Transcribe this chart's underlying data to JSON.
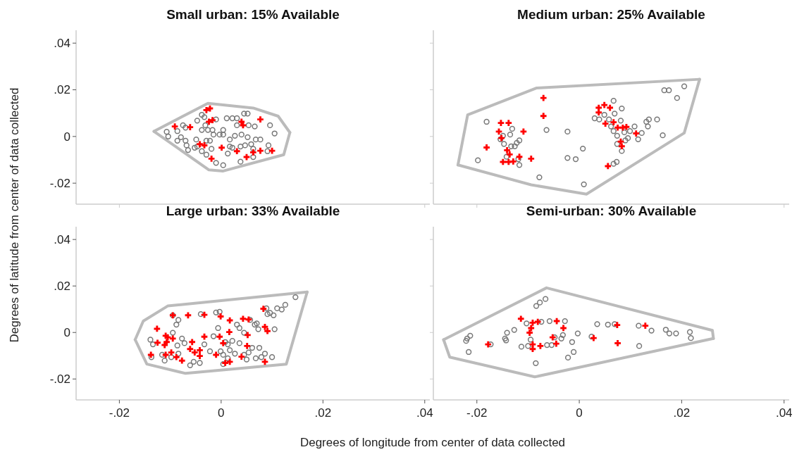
{
  "chart_data": [
    {
      "type": "scatter",
      "title": "Small urban: 15% Available",
      "xlim": [
        -0.0285,
        0.041
      ],
      "ylim": [
        -0.029,
        0.0455
      ],
      "xticks": [
        {
          "value": -0.02,
          "label": null
        },
        {
          "value": 0,
          "label": null
        },
        {
          "value": 0.02,
          "label": null
        },
        {
          "value": 0.04,
          "label": null
        }
      ],
      "yticks": [
        {
          "value": -0.02,
          "label": "-.02"
        },
        0,
        {
          "value": 0.02,
          "label": ".02"
        },
        {
          "value": 0.04,
          "label": ".04"
        }
      ],
      "tick_labels": "y",
      "series": [
        {
          "type": "line",
          "color": "#bbbbbb",
          "marker": "none",
          "x": [
            -0.0132,
            -0.0026,
            0.0063,
            0.0112,
            0.0135
          ],
          "values": [
            0.0022,
            0.0142,
            0.0122,
            0.0087,
            0.0017
          ]
        },
        {
          "type": "line",
          "color": "#bbbbbb",
          "marker": "none",
          "x": [
            -0.0132,
            -0.0024,
            0.0004,
            0.0123,
            0.0135
          ],
          "values": [
            0.0022,
            -0.0143,
            -0.0148,
            -0.0078,
            0.0017
          ]
        },
        {
          "type": "scatter",
          "color": "#777777",
          "marker": "circle",
          "x": [
            -0.0107,
            -0.0104,
            -0.0086,
            -0.0075,
            -0.007,
            -0.0079,
            -0.0086,
            -0.007,
            -0.0068,
            -0.0047,
            -0.0038,
            -0.0033,
            -0.0031,
            -0.0026,
            -0.0038,
            -0.0049,
            -0.0052,
            -0.0038,
            -0.0029,
            -0.0019,
            -0.0029,
            -0.0022,
            -0.0015,
            -0.001,
            0.0004,
            -0.0003,
            0.0004,
            0.0011,
            0.0022,
            0.0031,
            0.0045,
            0.0052,
            0.0031,
            0.0054,
            0.0066,
            0.0096,
            0.0105,
            0.0017,
            0.0027,
            0.004,
            0.0052,
            0.0068,
            0.0077,
            0.0059,
            0.0047,
            0.0017,
            0.0022,
            0.0013,
            0.0038,
            -0.001,
            0.0004,
            0.0038,
            0.0063,
            0.0093,
            0.0063,
            -0.0047,
            -0.0017,
            0.0091,
            -0.0065
          ],
          "values": [
            0.002,
            0.0,
            0.0023,
            0.0048,
            0.0038,
            -0.0003,
            -0.0018,
            -0.0018,
            -0.0038,
            0.0068,
            0.0093,
            0.0083,
            0.0048,
            0.0028,
            0.0028,
            -0.0013,
            -0.0048,
            -0.0063,
            -0.0078,
            -0.0053,
            -0.0018,
            -0.0018,
            0.0008,
            0.0073,
            0.0028,
            0.0008,
            0.0008,
            0.0078,
            0.0078,
            0.0078,
            0.0098,
            0.0098,
            0.0048,
            0.0048,
            0.0043,
            0.0048,
            0.0013,
            -0.0013,
            0.0003,
            0.0008,
            -0.0003,
            -0.0013,
            -0.0013,
            -0.0033,
            -0.0038,
            -0.0043,
            -0.0048,
            -0.0073,
            -0.0043,
            -0.0113,
            -0.0123,
            -0.0108,
            -0.0088,
            -0.0038,
            -0.0053,
            -0.0043,
            0.0028,
            -0.0063,
            -0.0058
          ]
        },
        {
          "type": "scatter",
          "color": "#ff0000",
          "marker": "cross",
          "x": [
            -0.0091,
            -0.0061,
            -0.0029,
            -0.0022,
            -0.0024,
            -0.0017,
            -0.0042,
            -0.0033,
            0.0001,
            0.0031,
            0.005,
            0.0063,
            0.0077,
            0.01,
            0.0077,
            0.004,
            0.0043,
            -0.0019
          ],
          "values": [
            0.0043,
            0.004,
            0.0113,
            0.012,
            0.0063,
            0.007,
            -0.0033,
            -0.0038,
            -0.0048,
            -0.0063,
            -0.0088,
            -0.0068,
            -0.0061,
            -0.0061,
            0.0073,
            0.0063,
            0.0048,
            -0.0095
          ]
        }
      ]
    },
    {
      "type": "scatter",
      "title": "Medium urban: 25% Available",
      "xlim": [
        -0.0285,
        0.041
      ],
      "ylim": [
        -0.029,
        0.0455
      ],
      "xticks": [
        {
          "value": -0.02,
          "label": null
        },
        {
          "value": 0,
          "label": null
        },
        {
          "value": 0.02,
          "label": null
        },
        {
          "value": 0.04,
          "label": null
        }
      ],
      "yticks": [
        {
          "value": -0.02,
          "label": null
        },
        {
          "value": 0,
          "label": null
        },
        {
          "value": 0.02,
          "label": null
        },
        {
          "value": 0.04,
          "label": null
        }
      ],
      "tick_labels": false,
      "series": [
        {
          "type": "line",
          "color": "#bbbbbb",
          "marker": "none",
          "x": [
            -0.0237,
            -0.0218,
            -0.0083,
            0.0235
          ],
          "values": [
            -0.0122,
            0.0093,
            0.0208,
            0.0245
          ]
        },
        {
          "type": "line",
          "color": "#bbbbbb",
          "marker": "none",
          "x": [
            -0.0237,
            -0.0094,
            0.0014,
            0.0205,
            0.0235
          ],
          "values": [
            -0.0122,
            -0.0207,
            -0.0247,
            0.0015,
            0.0245
          ]
        },
        {
          "type": "scatter",
          "color": "#777777",
          "marker": "circle",
          "x": [
            -0.0181,
            -0.0198,
            -0.0131,
            -0.0135,
            -0.0149,
            -0.0154,
            -0.0147,
            -0.0133,
            -0.0126,
            -0.0122,
            -0.0117,
            -0.0142,
            -0.0117,
            -0.0119,
            -0.0064,
            -0.0078,
            -0.0023,
            -0.0023,
            -0.0007,
            0.0007,
            0.0009,
            0.0067,
            0.0083,
            0.0069,
            0.003,
            0.0039,
            0.0049,
            0.0058,
            0.0062,
            0.0067,
            0.0074,
            0.0081,
            0.0088,
            0.0095,
            0.0099,
            0.0108,
            0.0115,
            0.0122,
            0.009,
            0.0074,
            0.0083,
            0.0067,
            0.0073,
            0.0131,
            0.0136,
            0.0134,
            0.0152,
            0.0163,
            0.0166,
            0.0175,
            0.0191,
            0.0205
          ],
          "values": [
            0.0063,
            -0.0102,
            0.0033,
            0.0008,
            0.0003,
            -0.0012,
            -0.0032,
            -0.0042,
            -0.0042,
            -0.0027,
            -0.0017,
            -0.0087,
            -0.0122,
            -0.0097,
            0.0028,
            -0.0175,
            0.0021,
            -0.0092,
            -0.0097,
            -0.0052,
            -0.0205,
            0.0153,
            0.012,
            0.0098,
            0.0078,
            0.0073,
            0.0093,
            0.0073,
            0.0043,
            0.0023,
            0.0003,
            0.0068,
            0.0018,
            -0.0007,
            0.0023,
            0.0043,
            -0.0012,
            0.0015,
            -0.0017,
            -0.0032,
            -0.0062,
            -0.0117,
            -0.0109,
            0.0063,
            0.0073,
            0.0043,
            0.0073,
            0.0005,
            0.0198,
            0.0198,
            0.0165,
            0.0215
          ]
        },
        {
          "type": "scatter",
          "color": "#ff0000",
          "marker": "cross",
          "x": [
            -0.0181,
            -0.0153,
            -0.0138,
            -0.0157,
            -0.0152,
            -0.0109,
            -0.0141,
            -0.0136,
            -0.0149,
            -0.0138,
            -0.0129,
            -0.0117,
            -0.0094,
            -0.007,
            -0.007,
            0.0038,
            0.0049,
            0.006,
            0.0038,
            0.0051,
            0.0067,
            0.0075,
            0.0085,
            0.0092,
            0.0111,
            0.0081,
            0.0083,
            0.0056
          ],
          "values": [
            -0.0047,
            0.0058,
            0.0058,
            0.0021,
            -0.0007,
            0.0021,
            -0.0059,
            -0.0077,
            -0.0109,
            -0.0109,
            -0.0107,
            -0.0087,
            -0.0095,
            0.0165,
            0.0088,
            0.0123,
            0.0135,
            0.0123,
            0.0103,
            0.0055,
            0.0061,
            0.0038,
            0.0038,
            0.0041,
            0.0013,
            -0.0022,
            -0.0042,
            -0.0127
          ]
        }
      ]
    },
    {
      "type": "scatter",
      "title": "Large urban: 33% Available",
      "xlabel": "Degrees of longitude from center of data collected",
      "ylabel": "Degrees of latitude from center of data collected",
      "xlim": [
        -0.0285,
        0.041
      ],
      "ylim": [
        -0.029,
        0.0455
      ],
      "xticks": [
        {
          "value": -0.02,
          "label": "-.02"
        },
        0,
        {
          "value": 0.02,
          "label": ".02"
        },
        {
          "value": 0.04,
          "label": ".04"
        }
      ],
      "yticks": [
        {
          "value": -0.02,
          "label": "-.02"
        },
        0,
        {
          "value": 0.02,
          "label": ".02"
        },
        {
          "value": 0.04,
          "label": ".04"
        }
      ],
      "series": [
        {
          "type": "line",
          "color": "#bbbbbb",
          "marker": "none",
          "x": [
            -0.0169,
            -0.0153,
            -0.0105,
            0.0169
          ],
          "values": [
            -0.0031,
            0.0049,
            0.0114,
            0.0174
          ]
        },
        {
          "type": "line",
          "color": "#bbbbbb",
          "marker": "none",
          "x": [
            -0.0169,
            -0.0146,
            -0.007,
            0.0128,
            0.0169
          ],
          "values": [
            -0.0031,
            -0.0136,
            -0.0176,
            -0.0136,
            0.0174
          ]
        },
        {
          "type": "scatter",
          "color": "#777777",
          "marker": "circle",
          "x": [
            -0.0139,
            -0.0134,
            -0.0137,
            -0.0116,
            -0.0111,
            -0.0095,
            -0.0084,
            -0.0088,
            -0.0095,
            -0.0077,
            -0.0072,
            -0.0086,
            -0.0084,
            -0.0098,
            -0.0061,
            -0.0054,
            -0.0042,
            -0.004,
            -0.0033,
            -0.001,
            -0.0003,
            -0.0006,
            -0.0015,
            -0.0022,
            -0.0001,
            0.0004,
            0.0013,
            0.0022,
            0.0017,
            0.0027,
            0.0036,
            0.0031,
            0.0036,
            0.0045,
            0.0057,
            0.0004,
            0.0013,
            0.0045,
            0.005,
            0.0054,
            0.0061,
            0.0075,
            0.0068,
            0.0079,
            0.0086,
            0.01,
            0.0066,
            0.0073,
            0.0089,
            0.0096,
            0.011,
            0.0119,
            0.0126,
            0.0146,
            0.0091,
            0.0103,
            0.0105,
            0.007,
            0.0008
          ],
          "values": [
            -0.0031,
            -0.0051,
            -0.0106,
            -0.0096,
            -0.0121,
            0.0074,
            0.0054,
            0.0034,
            -0.0001,
            -0.0026,
            -0.0046,
            -0.0056,
            -0.0091,
            -0.0106,
            -0.0141,
            -0.0126,
            -0.0131,
            0.0079,
            -0.0051,
            0.0086,
            0.0089,
            0.0019,
            -0.0016,
            -0.0081,
            -0.0081,
            -0.0096,
            -0.0051,
            -0.0036,
            -0.0076,
            -0.0091,
            -0.0046,
            0.0034,
            0.0019,
            -0.0001,
            0.0054,
            -0.0136,
            -0.0111,
            -0.0096,
            -0.0116,
            -0.0086,
            -0.0066,
            -0.0066,
            -0.0111,
            -0.0106,
            -0.0091,
            -0.0106,
            0.0034,
            0.0014,
            0.0104,
            0.0084,
            0.0104,
            0.0099,
            0.0119,
            0.0152,
            0.0079,
            0.0074,
            0.0014,
            0.0039,
            -0.0041
          ]
        },
        {
          "type": "scatter",
          "color": "#ff0000",
          "marker": "cross",
          "x": [
            -0.0095,
            -0.0065,
            -0.0033,
            -0.0126,
            -0.0109,
            -0.0105,
            -0.0095,
            -0.0125,
            -0.0111,
            -0.0107,
            -0.0138,
            -0.0109,
            -0.0098,
            -0.0088,
            -0.0077,
            -0.0057,
            -0.0061,
            -0.0052,
            -0.0042,
            -0.0042,
            -0.0033,
            -0.001,
            -0.0003,
            -0.0001,
            0.0004,
            0.0017,
            0.0016,
            0.0043,
            0.0054,
            0.0052,
            0.0051,
            0.004,
            0.0008,
            0.0017,
            0.0083,
            0.0086,
            0.0091,
            0.0086
          ],
          "values": [
            0.0074,
            0.0074,
            0.0076,
            0.0016,
            -0.0014,
            -0.0021,
            -0.0026,
            -0.0044,
            -0.0054,
            -0.0041,
            -0.0096,
            -0.0096,
            -0.0086,
            -0.0106,
            -0.0121,
            -0.0041,
            -0.0071,
            -0.0086,
            -0.0076,
            -0.0101,
            -0.0018,
            -0.0096,
            -0.0018,
            0.0069,
            -0.0046,
            0.0052,
            0.0002,
            0.0059,
            0.0056,
            -0.0011,
            -0.0058,
            -0.0104,
            -0.0131,
            -0.0126,
            0.0102,
            0.0024,
            0.0006,
            -0.0126
          ]
        }
      ]
    },
    {
      "type": "scatter",
      "title": "Semi-urban: 30% Available",
      "xlim": [
        -0.0285,
        0.041
      ],
      "ylim": [
        -0.029,
        0.0455
      ],
      "xticks": [
        {
          "value": -0.02,
          "label": "-.02"
        },
        0,
        {
          "value": 0.02,
          "label": ".02"
        },
        {
          "value": 0.04,
          "label": ".04"
        }
      ],
      "yticks": [
        {
          "value": -0.02,
          "label": null
        },
        {
          "value": 0,
          "label": null
        },
        {
          "value": 0.02,
          "label": null
        },
        {
          "value": 0.04,
          "label": null
        }
      ],
      "tick_labels": "x",
      "series": [
        {
          "type": "line",
          "color": "#bbbbbb",
          "marker": "none",
          "x": [
            -0.0265,
            -0.0064,
            0.026,
            0.0262
          ],
          "values": [
            -0.0031,
            0.0192,
            0.0009,
            -0.0026
          ]
        },
        {
          "type": "line",
          "color": "#bbbbbb",
          "marker": "none",
          "x": [
            -0.0265,
            -0.0253,
            -0.0087,
            0.0262
          ],
          "values": [
            -0.0031,
            -0.0106,
            -0.0191,
            -0.0026
          ]
        },
        {
          "type": "scatter",
          "color": "#777777",
          "marker": "circle",
          "x": [
            -0.0221,
            -0.0219,
            -0.0213,
            -0.0216,
            -0.0173,
            -0.0145,
            -0.0141,
            -0.0143,
            -0.0127,
            -0.0113,
            -0.0103,
            -0.01,
            -0.0095,
            -0.0084,
            -0.0077,
            -0.0066,
            -0.0074,
            -0.0058,
            -0.0048,
            -0.0063,
            -0.0054,
            -0.0035,
            -0.0032,
            -0.0028,
            -0.0014,
            -0.0011,
            -0.0022,
            -0.0003,
            0.0024,
            0.0035,
            0.0056,
            0.0069,
            0.0116,
            0.0117,
            0.0141,
            0.0169,
            0.0176,
            0.0189,
            0.0216,
            0.0218,
            -0.0085
          ],
          "values": [
            -0.0036,
            -0.0026,
            -0.0014,
            -0.0084,
            -0.0051,
            -0.0026,
            -0.0001,
            -0.0034,
            0.0011,
            -0.0061,
            0.0039,
            -0.0058,
            -0.0031,
            0.0114,
            0.0129,
            0.0144,
            0.0046,
            0.0049,
            -0.0021,
            -0.0054,
            -0.0054,
            -0.0026,
            -0.0011,
            0.0049,
            -0.0041,
            -0.0084,
            -0.0108,
            -0.0004,
            -0.0018,
            0.0036,
            0.0034,
            0.0036,
            0.0029,
            -0.0058,
            0.0008,
            0.0012,
            -0.0004,
            -0.0004,
            0.0002,
            -0.0024,
            -0.0132
          ]
        },
        {
          "type": "scatter",
          "color": "#ff0000",
          "marker": "cross",
          "x": [
            -0.0178,
            -0.0114,
            -0.0091,
            -0.0081,
            -0.0094,
            -0.0097,
            -0.0091,
            -0.0091,
            -0.0076,
            -0.0044,
            -0.0031,
            -0.0052,
            -0.0045,
            0.0028,
            0.0074,
            0.0075,
            0.0129
          ],
          "values": [
            -0.0051,
            0.0059,
            0.0042,
            0.0046,
            0.0019,
            -0.0001,
            -0.0051,
            -0.0071,
            -0.0058,
            0.0049,
            0.0019,
            -0.0021,
            -0.0048,
            -0.0024,
            0.0032,
            -0.0046,
            0.0029
          ]
        }
      ]
    }
  ]
}
